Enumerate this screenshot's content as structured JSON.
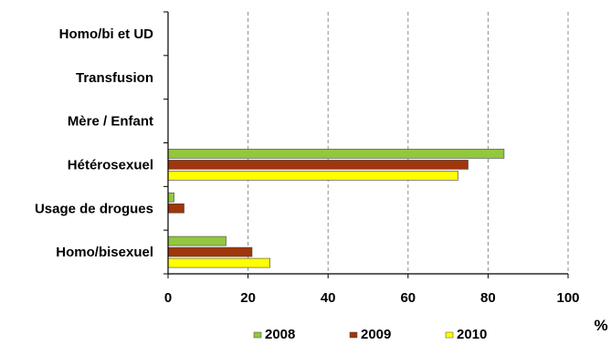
{
  "chart_data": {
    "type": "bar",
    "orientation": "horizontal",
    "categories": [
      "Homo/bisexuel",
      "Usage de drogues",
      "Hétérosexuel",
      "Mère / Enfant",
      "Transfusion",
      "Homo/bi et UD"
    ],
    "series": [
      {
        "name": "2008",
        "values": [
          14.5,
          1.5,
          84,
          0,
          0,
          0
        ],
        "color": "#92C83E"
      },
      {
        "name": "2009",
        "values": [
          21,
          4,
          75,
          0,
          0,
          0
        ],
        "color": "#A0360B"
      },
      {
        "name": "2010",
        "values": [
          25.5,
          0,
          72.5,
          0,
          0,
          0
        ],
        "color": "#FFFF00"
      }
    ],
    "xlim": [
      0,
      100
    ],
    "xticks": [
      0,
      20,
      40,
      60,
      80,
      100
    ],
    "x_unit": "%",
    "grid": "vertical dashed",
    "legend_position": "bottom"
  }
}
